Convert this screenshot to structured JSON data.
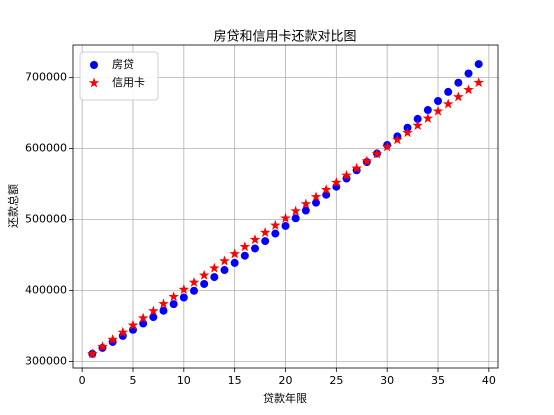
{
  "chart_data": {
    "type": "scatter",
    "title": "房贷和信用卡还款对比图",
    "xlabel": "贷款年限",
    "ylabel": "还款总额",
    "x": [
      1,
      2,
      3,
      4,
      5,
      6,
      7,
      8,
      9,
      10,
      11,
      12,
      13,
      14,
      15,
      16,
      17,
      18,
      19,
      20,
      21,
      22,
      23,
      24,
      25,
      26,
      27,
      28,
      29,
      30,
      31,
      32,
      33,
      34,
      35,
      36,
      37,
      38,
      39
    ],
    "series": [
      {
        "name": "房贷",
        "color": "#0000ff",
        "marker": "circle",
        "values": [
          311000,
          319300,
          327700,
          336200,
          344900,
          353700,
          362700,
          371700,
          381000,
          390300,
          399800,
          409400,
          419100,
          429000,
          439000,
          449200,
          459400,
          469800,
          480400,
          491100,
          501900,
          512800,
          523900,
          535100,
          546400,
          557900,
          569500,
          581200,
          593100,
          605100,
          617200,
          629500,
          641900,
          654400,
          667100,
          679900,
          692900,
          705900,
          719100
        ]
      },
      {
        "name": "信用卡",
        "color": "#ff0000",
        "marker": "star",
        "values": [
          311000,
          321050,
          331100,
          341150,
          351200,
          361250,
          371300,
          381350,
          391400,
          401450,
          411500,
          421550,
          431600,
          441650,
          451700,
          461750,
          471800,
          481850,
          491900,
          501950,
          512000,
          522050,
          532100,
          542150,
          552200,
          562250,
          572300,
          582350,
          592400,
          602450,
          612500,
          622550,
          632600,
          642650,
          652700,
          662750,
          672800,
          682850,
          692900
        ]
      }
    ],
    "xlim": [
      -0.9,
      40.9
    ],
    "xticks": [
      0,
      5,
      10,
      15,
      20,
      25,
      30,
      35,
      40
    ],
    "ylim": [
      291000,
      746000
    ],
    "yticks": [
      300000,
      400000,
      500000,
      600000,
      700000
    ],
    "grid": true,
    "legend": "upper left"
  }
}
